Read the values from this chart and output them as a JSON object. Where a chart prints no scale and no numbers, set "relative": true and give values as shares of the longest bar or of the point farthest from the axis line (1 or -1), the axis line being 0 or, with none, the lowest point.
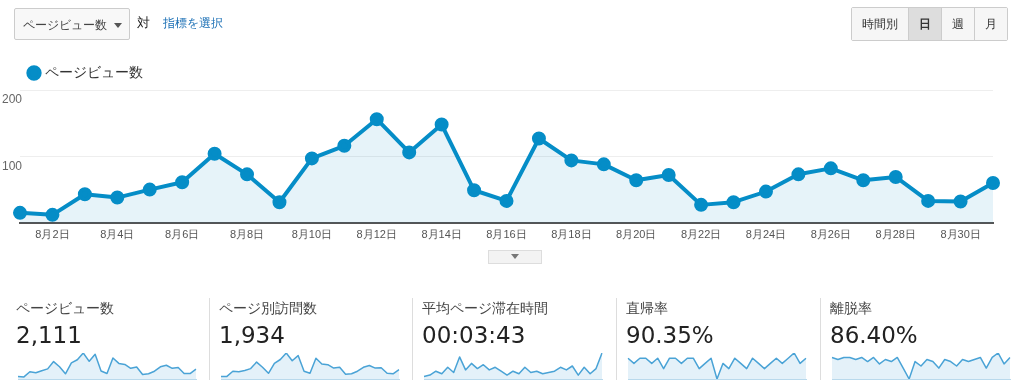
{
  "chart_data": [
    {
      "type": "area",
      "categories": [
        null,
        "8月2日",
        null,
        "8月4日",
        null,
        "8月6日",
        null,
        "8月8日",
        null,
        "8月10日",
        null,
        "8月12日",
        null,
        "8月14日",
        null,
        "8月16日",
        null,
        "8月18日",
        null,
        "8月20日",
        null,
        "8月22日",
        null,
        "8月24日",
        null,
        "8月26日",
        null,
        "8月28日",
        null,
        "8月30日",
        null
      ],
      "series": [
        {
          "name": "ページビュー数",
          "color": "#058dc7",
          "values": [
            15,
            12,
            43,
            38,
            50,
            61,
            104,
            73,
            31,
            97,
            116,
            156,
            106,
            148,
            49,
            33,
            127,
            94,
            88,
            64,
            72,
            27,
            31,
            47,
            73,
            82,
            64,
            69,
            33,
            32,
            60
          ]
        }
      ],
      "ylim": [
        0,
        200
      ],
      "yticks": [
        100,
        200
      ],
      "grid": "y",
      "legend": "top left",
      "marker": "circle",
      "annotations": [
        "ページビュー数",
        "対",
        "指標を選択",
        "時間別",
        "日",
        "週",
        "月"
      ]
    },
    {
      "type": "area",
      "title": "ページビュー数",
      "subtitle": "2,111",
      "relative": true,
      "categories": [
        null,
        null,
        null,
        null,
        null,
        null,
        null,
        null,
        null,
        null,
        null,
        null,
        null,
        null,
        null,
        null,
        null,
        null,
        null,
        null,
        null,
        null,
        null,
        null,
        null,
        null,
        null,
        null,
        null,
        null,
        null
      ],
      "series": [
        {
          "color": "#4aa3d6",
          "values": [
            0.1,
            0.08,
            0.28,
            0.24,
            0.32,
            0.39,
            0.67,
            0.47,
            0.2,
            0.62,
            0.74,
            1,
            0.68,
            0.95,
            0.31,
            0.21,
            0.81,
            0.6,
            0.56,
            0.41,
            0.46,
            0.17,
            0.2,
            0.3,
            0.47,
            0.53,
            0.41,
            0.44,
            0.21,
            0.21,
            0.38
          ]
        }
      ]
    },
    {
      "type": "area",
      "title": "ページ別訪問数",
      "subtitle": "1,934",
      "relative": true,
      "categories": [
        null,
        null,
        null,
        null,
        null,
        null,
        null,
        null,
        null,
        null,
        null,
        null,
        null,
        null,
        null,
        null,
        null,
        null,
        null,
        null,
        null,
        null,
        null,
        null,
        null,
        null,
        null,
        null,
        null,
        null,
        null
      ],
      "series": [
        {
          "color": "#4aa3d6",
          "values": [
            0.1,
            0.1,
            0.3,
            0.28,
            0.33,
            0.4,
            0.65,
            0.45,
            0.22,
            0.6,
            0.75,
            1,
            0.7,
            0.9,
            0.3,
            0.22,
            0.8,
            0.58,
            0.55,
            0.42,
            0.45,
            0.18,
            0.2,
            0.3,
            0.45,
            0.52,
            0.42,
            0.43,
            0.22,
            0.2,
            0.36
          ]
        }
      ]
    },
    {
      "type": "area",
      "title": "平均ページ滞在時間",
      "subtitle": "00:03:43",
      "relative": true,
      "categories": [
        null,
        null,
        null,
        null,
        null,
        null,
        null,
        null,
        null,
        null,
        null,
        null,
        null,
        null,
        null,
        null,
        null,
        null,
        null,
        null,
        null,
        null,
        null,
        null,
        null,
        null,
        null,
        null,
        null,
        null,
        null
      ],
      "series": [
        {
          "color": "#4aa3d6",
          "values": [
            0.1,
            0.15,
            0.3,
            0.2,
            0.45,
            0.25,
            0.85,
            0.35,
            0.6,
            0.4,
            0.55,
            0.35,
            0.45,
            0.3,
            0.15,
            0.3,
            0.2,
            0.45,
            0.25,
            0.3,
            0.2,
            0.25,
            0.3,
            0.45,
            0.35,
            0.5,
            0.15,
            0.45,
            0.2,
            0.4,
            1
          ]
        }
      ]
    },
    {
      "type": "area",
      "title": "直帰率",
      "subtitle": "90.35%",
      "relative": true,
      "categories": [
        null,
        null,
        null,
        null,
        null,
        null,
        null,
        null,
        null,
        null,
        null,
        null,
        null,
        null,
        null,
        null,
        null,
        null,
        null,
        null,
        null,
        null,
        null,
        null,
        null,
        null,
        null,
        null,
        null,
        null,
        null
      ],
      "series": [
        {
          "color": "#4aa3d6",
          "values": [
            0.8,
            0.6,
            0.8,
            0.8,
            0.6,
            0.8,
            0.4,
            0.8,
            0.8,
            0.6,
            0.8,
            0.8,
            0.4,
            0.6,
            0.8,
            0,
            0.6,
            0.4,
            0.8,
            0.6,
            0.4,
            0.8,
            0.6,
            0.4,
            0.6,
            0.8,
            0.6,
            0.8,
            1,
            0.6,
            0.8
          ]
        }
      ]
    },
    {
      "type": "area",
      "title": "離脱率",
      "subtitle": "86.40%",
      "relative": true,
      "categories": [
        null,
        null,
        null,
        null,
        null,
        null,
        null,
        null,
        null,
        null,
        null,
        null,
        null,
        null,
        null,
        null,
        null,
        null,
        null,
        null,
        null,
        null,
        null,
        null,
        null,
        null,
        null,
        null,
        null,
        null,
        null
      ],
      "series": [
        {
          "color": "#4aa3d6",
          "values": [
            0.83,
            0.75,
            0.83,
            0.83,
            0.75,
            0.83,
            0.67,
            0.83,
            0.58,
            0.75,
            0.67,
            0.83,
            0.42,
            0,
            0.67,
            0.5,
            0.75,
            0.67,
            0.42,
            0.75,
            0.67,
            0.5,
            0.75,
            0.67,
            0.75,
            0.83,
            0.42,
            0.83,
            1,
            0.58,
            0.83
          ]
        }
      ]
    }
  ]
}
